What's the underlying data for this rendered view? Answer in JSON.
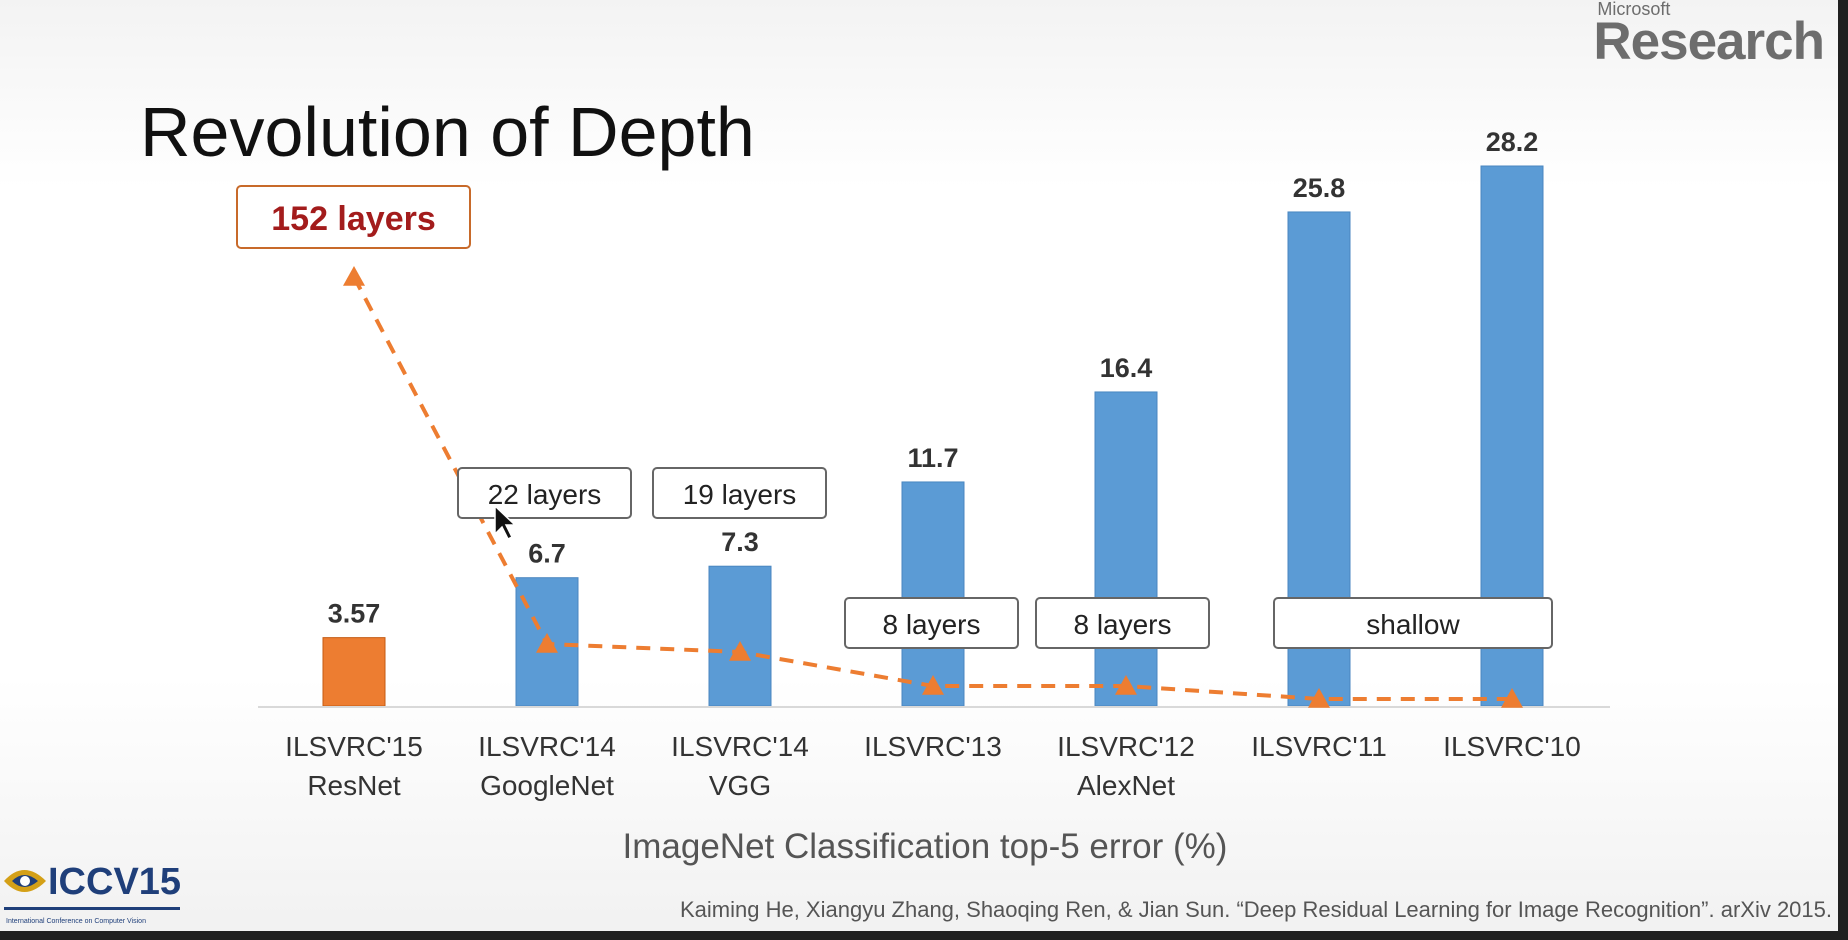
{
  "brand": {
    "small": "Microsoft",
    "big": "Research"
  },
  "slide_title": "Revolution of Depth",
  "chart_data": {
    "type": "bar",
    "categories": [
      [
        "ILSVRC'15",
        "ResNet"
      ],
      [
        "ILSVRC'14",
        "GoogleNet"
      ],
      [
        "ILSVRC'14",
        "VGG"
      ],
      [
        "ILSVRC'13"
      ],
      [
        "ILSVRC'12",
        "AlexNet"
      ],
      [
        "ILSVRC'11"
      ],
      [
        "ILSVRC'10"
      ]
    ],
    "values": [
      3.57,
      6.7,
      7.3,
      11.7,
      16.4,
      25.8,
      28.2
    ],
    "value_labels": [
      "3.57",
      "6.7",
      "7.3",
      "11.7",
      "16.4",
      "25.8",
      "28.2"
    ],
    "bar_colors": [
      "#ed7d31",
      "#5b9bd5",
      "#5b9bd5",
      "#5b9bd5",
      "#5b9bd5",
      "#5b9bd5",
      "#5b9bd5"
    ],
    "depth_line": {
      "color": "#ed7d31",
      "values": [
        152,
        22,
        19,
        8,
        8,
        0,
        0
      ]
    },
    "layer_labels": [
      {
        "text": "152 layers",
        "categories": [
          0
        ],
        "highlight": true
      },
      {
        "text": "22 layers",
        "categories": [
          1
        ]
      },
      {
        "text": "19 layers",
        "categories": [
          2
        ]
      },
      {
        "text": "8 layers",
        "categories": [
          3
        ]
      },
      {
        "text": "8 layers",
        "categories": [
          4
        ]
      },
      {
        "text": "shallow",
        "categories": [
          5,
          6
        ]
      }
    ],
    "xlabel": "ImageNet Classification top-5 error (%)",
    "ylabel": "",
    "ylim": [
      0,
      28.2
    ],
    "grid": false,
    "legend": "none"
  },
  "footer": {
    "logo_text": "ICCV15",
    "logo_subtext": "International Conference on Computer Vision",
    "citation": "Kaiming He, Xiangyu Zhang, Shaoqing Ren, & Jian Sun. “Deep Residual Learning for Image Recognition”. arXiv 2015."
  }
}
